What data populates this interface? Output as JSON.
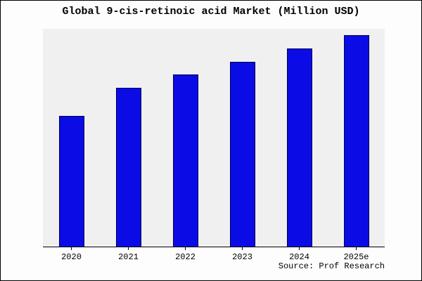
{
  "title": "Global 9-cis-retinoic acid Market (Million USD)",
  "source": "Source: Prof Research",
  "colors": {
    "bar_fill": "#0b0be6",
    "bar_edge": "#000050",
    "plot_bg": "#f0f0f0",
    "axis": "#000000",
    "page_bg": "#fdfdfd"
  },
  "chart_data": {
    "type": "bar",
    "title": "Global 9-cis-retinoic acid Market (Million USD)",
    "categories": [
      "2020",
      "2021",
      "2022",
      "2023",
      "2024",
      "2025e"
    ],
    "values": [
      60,
      73,
      79,
      85,
      91,
      97
    ],
    "xlabel": "",
    "ylabel": "",
    "ylim": [
      0,
      100
    ],
    "grid": false,
    "legend": false,
    "annotation": "Source: Prof Research"
  }
}
